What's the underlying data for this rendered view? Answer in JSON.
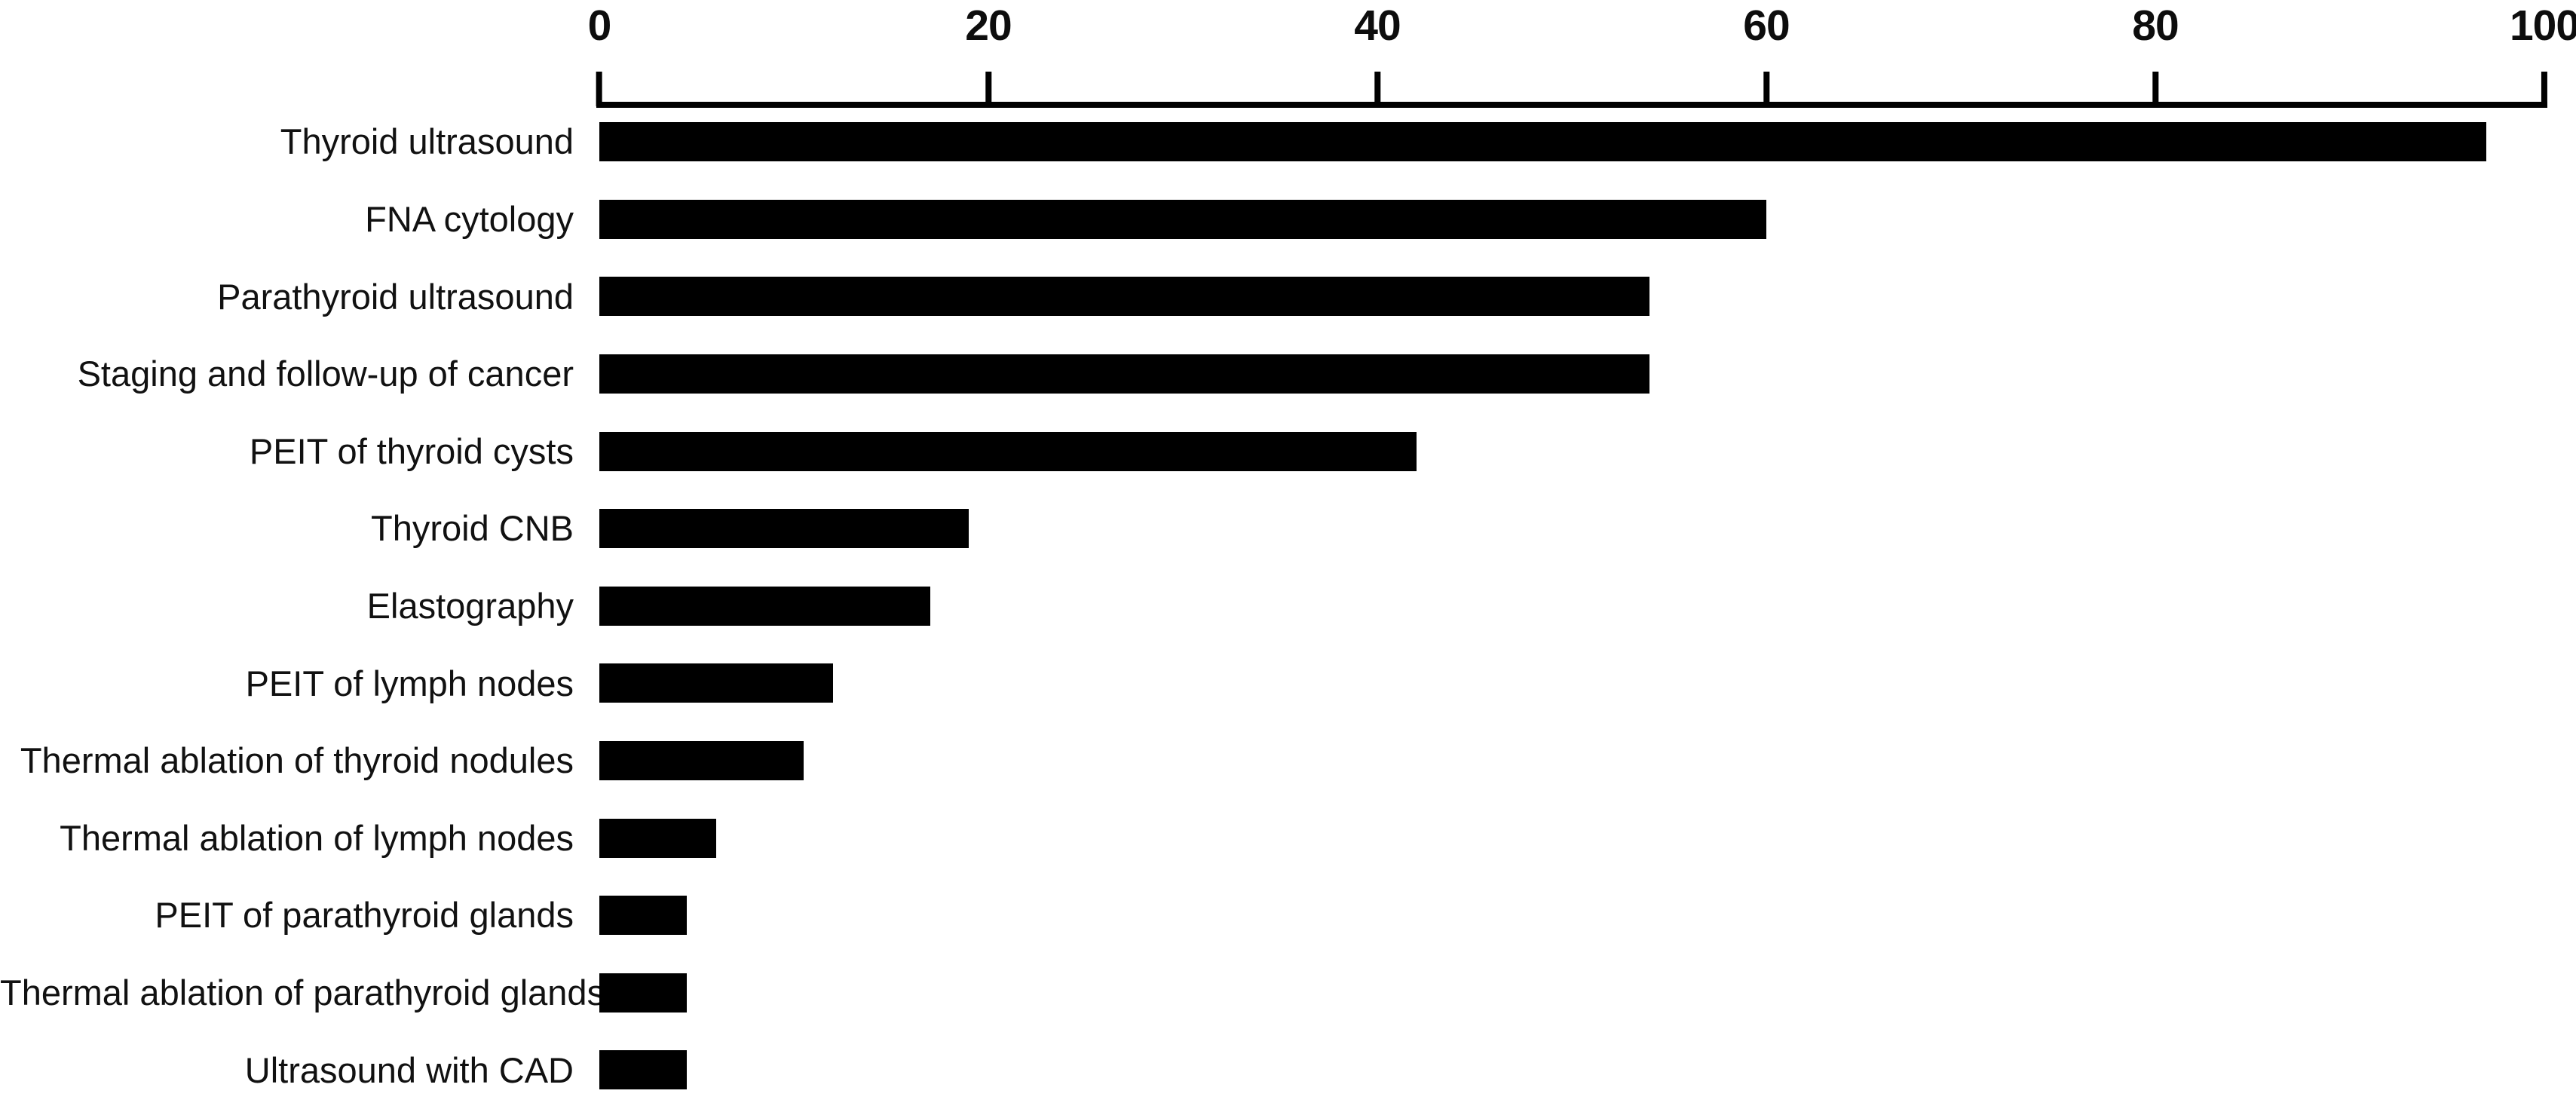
{
  "chart_data": {
    "type": "bar",
    "orientation": "horizontal",
    "title": "",
    "xlabel": "",
    "ylabel": "",
    "axis_position": "top",
    "grid": false,
    "legend": false,
    "xlim": [
      0,
      100
    ],
    "x_ticks": [
      0,
      20,
      40,
      60,
      80,
      100
    ],
    "x_tick_labels": [
      "0",
      "20",
      "40",
      "60",
      "80",
      "100"
    ],
    "categories": [
      "Thyroid ultrasound",
      "FNA cytology",
      "Parathyroid ultrasound",
      "Staging and follow-up of cancer",
      "PEIT of thyroid cysts",
      "Thyroid CNB",
      "Elastography",
      "PEIT of lymph nodes",
      "Thermal ablation of thyroid nodules",
      "Thermal ablation of lymph nodes",
      "PEIT of parathyroid glands",
      "Thermal ablation of parathyroid glands",
      "Ultrasound with CAD"
    ],
    "values": [
      97,
      60,
      54,
      54,
      42,
      19,
      17,
      12,
      10.5,
      6,
      4.5,
      4.5,
      4.5
    ]
  },
  "colors": {
    "bar": "#000000",
    "axis": "#000000",
    "text": "#0d0d0d",
    "background": "#ffffff"
  }
}
